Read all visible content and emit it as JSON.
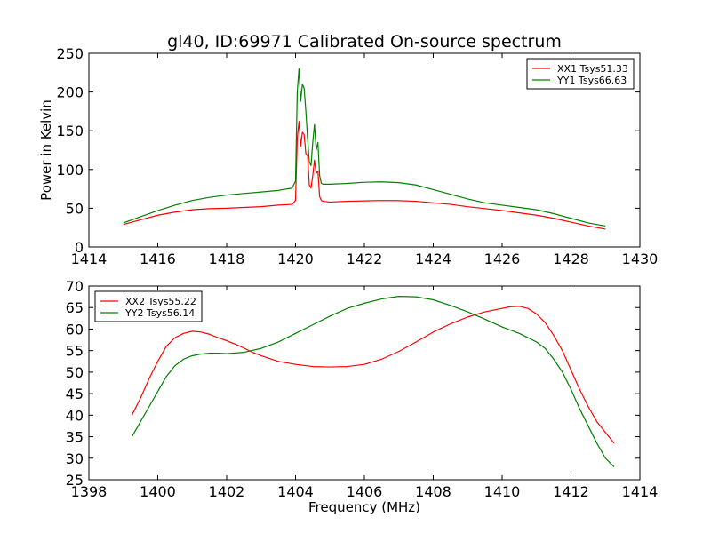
{
  "figure": {
    "title": "gl40, ID:69971 Calibrated On-source spectrum"
  },
  "chart_data": [
    {
      "type": "line",
      "title": "gl40, ID:69971 Calibrated On-source spectrum",
      "xlabel": "",
      "ylabel": "Power in Kelvin",
      "xlim": [
        1414,
        1430
      ],
      "ylim": [
        0,
        250
      ],
      "xticks": [
        1414,
        1416,
        1418,
        1420,
        1422,
        1424,
        1426,
        1428,
        1430
      ],
      "yticks": [
        0,
        50,
        100,
        150,
        200,
        250
      ],
      "grid": false,
      "legend_position": "top-right",
      "series": [
        {
          "name": "XX1 Tsys51.33",
          "color": "#ff0000",
          "x": [
            1415.0,
            1415.5,
            1416.0,
            1416.5,
            1417.0,
            1417.5,
            1418.0,
            1418.5,
            1419.0,
            1419.5,
            1419.9,
            1420.0,
            1420.05,
            1420.1,
            1420.15,
            1420.2,
            1420.25,
            1420.3,
            1420.35,
            1420.4,
            1420.45,
            1420.5,
            1420.55,
            1420.6,
            1420.65,
            1420.7,
            1420.75,
            1420.8,
            1421.0,
            1421.5,
            1422.0,
            1422.5,
            1423.0,
            1423.5,
            1424.0,
            1424.5,
            1425.0,
            1425.5,
            1426.0,
            1426.5,
            1427.0,
            1427.5,
            1428.0,
            1428.5,
            1429.0
          ],
          "values": [
            29,
            35,
            41,
            45,
            48,
            49.5,
            50,
            51,
            52,
            54,
            55,
            60,
            140,
            162,
            130,
            148,
            145,
            120,
            118,
            80,
            76,
            92,
            112,
            95,
            98,
            65,
            60,
            59,
            58,
            59,
            59.5,
            60,
            59.8,
            59,
            57,
            55,
            52,
            49.5,
            47,
            44,
            41,
            37,
            32,
            27,
            23
          ]
        },
        {
          "name": "YY1 Tsys66.63",
          "color": "#008000",
          "x": [
            1415.0,
            1415.5,
            1416.0,
            1416.5,
            1417.0,
            1417.5,
            1418.0,
            1418.5,
            1419.0,
            1419.5,
            1419.9,
            1420.0,
            1420.05,
            1420.1,
            1420.15,
            1420.2,
            1420.25,
            1420.3,
            1420.35,
            1420.4,
            1420.45,
            1420.5,
            1420.55,
            1420.6,
            1420.65,
            1420.7,
            1420.75,
            1420.8,
            1421.0,
            1421.5,
            1422.0,
            1422.5,
            1423.0,
            1423.5,
            1424.0,
            1424.5,
            1425.0,
            1425.5,
            1426.0,
            1426.5,
            1427.0,
            1427.5,
            1428.0,
            1428.5,
            1429.0
          ],
          "values": [
            31,
            39,
            47,
            54,
            60,
            64,
            67,
            69,
            71,
            73,
            76,
            85,
            200,
            230,
            188,
            210,
            205,
            175,
            140,
            110,
            105,
            135,
            158,
            125,
            135,
            92,
            82,
            81,
            81,
            82,
            83.5,
            84,
            83,
            80,
            74,
            68,
            62,
            57,
            54,
            51,
            48,
            43,
            37,
            31,
            27
          ]
        }
      ]
    },
    {
      "type": "line",
      "title": "",
      "xlabel": "Frequency (MHz)",
      "ylabel": "",
      "xlim": [
        1398,
        1414
      ],
      "ylim": [
        25,
        70
      ],
      "xticks": [
        1398,
        1400,
        1402,
        1404,
        1406,
        1408,
        1410,
        1412,
        1414
      ],
      "yticks": [
        25,
        30,
        35,
        40,
        45,
        50,
        55,
        60,
        65,
        70
      ],
      "grid": false,
      "legend_position": "top-left",
      "series": [
        {
          "name": "XX2 Tsys55.22",
          "color": "#ff0000",
          "x": [
            1399.25,
            1399.5,
            1399.75,
            1400.0,
            1400.25,
            1400.5,
            1400.75,
            1401.0,
            1401.25,
            1401.5,
            1401.75,
            1402.0,
            1402.25,
            1402.5,
            1402.75,
            1403.0,
            1403.5,
            1404.0,
            1404.5,
            1405.0,
            1405.5,
            1406.0,
            1406.5,
            1407.0,
            1407.5,
            1408.0,
            1408.5,
            1409.0,
            1409.5,
            1410.0,
            1410.25,
            1410.5,
            1410.75,
            1411.0,
            1411.25,
            1411.5,
            1411.75,
            1412.0,
            1412.25,
            1412.5,
            1412.75,
            1413.0,
            1413.25
          ],
          "values": [
            40,
            44,
            48.5,
            52.5,
            56,
            58,
            59,
            59.5,
            59.3,
            58.8,
            58,
            57.3,
            56.5,
            55.6,
            54.6,
            53.8,
            52.5,
            51.8,
            51.3,
            51.2,
            51.3,
            51.8,
            53,
            54.8,
            57,
            59.3,
            61.2,
            62.8,
            64,
            64.8,
            65.2,
            65.3,
            64.8,
            63.5,
            61.5,
            58.5,
            55,
            50.5,
            46,
            42,
            38.5,
            36,
            33.5
          ]
        },
        {
          "name": "YY2 Tsys56.14",
          "color": "#008000",
          "x": [
            1399.25,
            1399.5,
            1399.75,
            1400.0,
            1400.25,
            1400.5,
            1400.75,
            1401.0,
            1401.25,
            1401.5,
            1401.75,
            1402.0,
            1402.5,
            1403.0,
            1403.5,
            1404.0,
            1404.5,
            1405.0,
            1405.5,
            1406.0,
            1406.5,
            1407.0,
            1407.5,
            1408.0,
            1408.5,
            1409.0,
            1409.5,
            1410.0,
            1410.5,
            1411.0,
            1411.25,
            1411.5,
            1411.75,
            1412.0,
            1412.25,
            1412.5,
            1412.75,
            1413.0,
            1413.25
          ],
          "values": [
            35,
            38.5,
            42,
            45.5,
            49,
            51.5,
            53,
            53.8,
            54.2,
            54.4,
            54.4,
            54.3,
            54.6,
            55.5,
            57,
            59,
            61,
            63,
            64.8,
            66,
            67,
            67.6,
            67.5,
            66.8,
            65.5,
            64,
            62.3,
            60.5,
            59,
            57,
            55.5,
            53,
            50,
            46,
            41.5,
            37.5,
            33.5,
            30,
            28
          ]
        }
      ]
    }
  ]
}
